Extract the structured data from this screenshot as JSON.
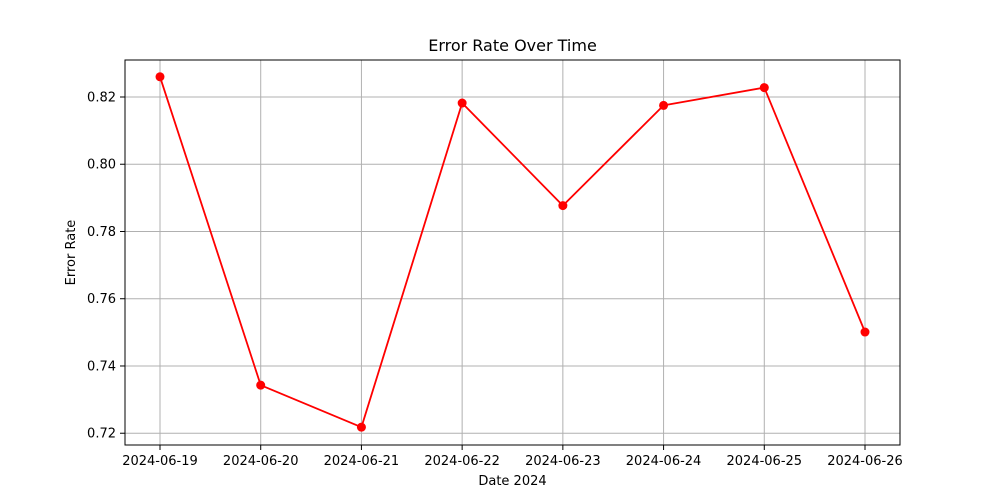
{
  "chart_data": {
    "type": "line",
    "title": "Error Rate Over Time",
    "xlabel": "Date 2024",
    "ylabel": "Error Rate",
    "x": [
      "2024-06-19",
      "2024-06-20",
      "2024-06-21",
      "2024-06-22",
      "2024-06-23",
      "2024-06-24",
      "2024-06-25",
      "2024-06-26"
    ],
    "series": [
      {
        "values": [
          0.826,
          0.7343,
          0.7218,
          0.8182,
          0.7877,
          0.8175,
          0.8228,
          0.7501
        ],
        "color": "#ff0000",
        "marker": "circle"
      }
    ],
    "yticks": [
      "0.72",
      "0.74",
      "0.76",
      "0.78",
      "0.80",
      "0.82"
    ],
    "ylim": [
      0.7165,
      0.831
    ],
    "grid": true,
    "grid_color": "#b0b0b0",
    "legend": "none"
  }
}
